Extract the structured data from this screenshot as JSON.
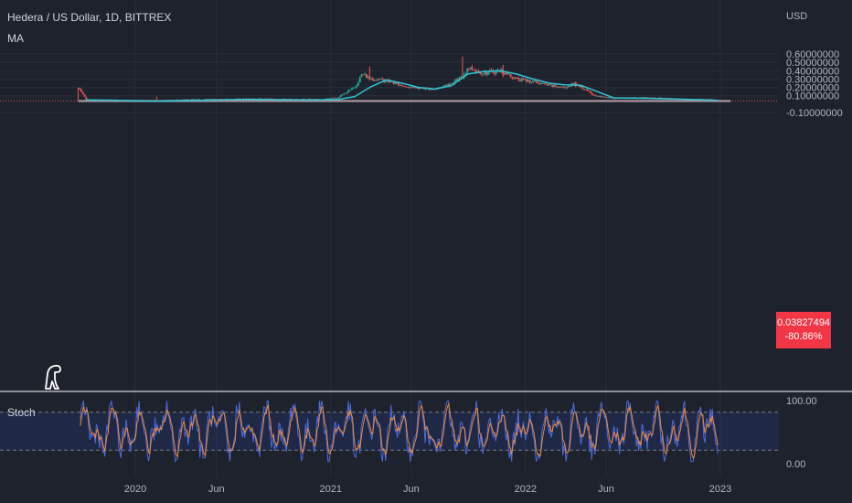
{
  "header": {
    "title": "Hedera / US Dollar, 1D, BITTREX",
    "indicator": "MA",
    "currency": "USD"
  },
  "price_tag": {
    "price": "0.03827494",
    "change": "-80.86%"
  },
  "stoch_panel": {
    "label": "Stoch",
    "upper": "100.00",
    "lower": "0.00"
  },
  "colors": {
    "background": "#1e222d",
    "up": "#26a69a",
    "down": "#ef5350",
    "ma": "#2ec4d6",
    "stoch_k": "#4f6bdc",
    "stoch_d": "#f08a3c",
    "price_tag": "#f23645",
    "support_zone": "#b2b5be"
  },
  "chart_data": [
    {
      "type": "candlestick",
      "title": "Hedera / US Dollar, 1D, BITTREX",
      "y_axis": {
        "label": "USD",
        "ticks": [
          "0.60000000",
          "0.50000000",
          "0.40000000",
          "0.30000000",
          "0.20000000",
          "0.10000000",
          "-0.10000000"
        ],
        "ylim": [
          -0.1,
          0.6
        ]
      },
      "x_axis": {
        "ticks": [
          "2020",
          "Jun",
          "2021",
          "Jun",
          "2022",
          "Jun",
          "2023"
        ]
      },
      "price_trend": {
        "x": [
          "2019-09-16",
          "2019-10-01",
          "2019-12-01",
          "2020-02-15",
          "2020-04-01",
          "2020-06-01",
          "2020-08-01",
          "2020-10-01",
          "2020-12-15",
          "2021-01-15",
          "2021-02-15",
          "2021-03-01",
          "2021-03-15",
          "2021-04-15",
          "2021-05-15",
          "2021-06-15",
          "2021-07-15",
          "2021-08-15",
          "2021-09-05",
          "2021-09-15",
          "2021-10-15",
          "2021-11-15",
          "2021-12-15",
          "2022-01-15",
          "2022-02-15",
          "2022-03-15",
          "2022-04-05",
          "2022-05-10",
          "2022-06-15",
          "2022-08-15",
          "2022-10-15",
          "2022-12-15",
          "2022-12-28"
        ],
        "y": [
          0.19,
          0.055,
          0.042,
          0.045,
          0.055,
          0.058,
          0.065,
          0.06,
          0.058,
          0.082,
          0.2,
          0.36,
          0.31,
          0.28,
          0.22,
          0.19,
          0.18,
          0.25,
          0.32,
          0.44,
          0.37,
          0.4,
          0.3,
          0.27,
          0.22,
          0.2,
          0.25,
          0.1,
          0.07,
          0.08,
          0.065,
          0.055,
          0.0383
        ]
      },
      "moving_average": {
        "name": "MA",
        "x": [
          "2019-10-01",
          "2019-12-01",
          "2020-02-15",
          "2020-04-01",
          "2020-06-01",
          "2020-08-01",
          "2020-10-01",
          "2020-12-15",
          "2021-01-15",
          "2021-02-15",
          "2021-03-15",
          "2021-04-15",
          "2021-05-15",
          "2021-06-15",
          "2021-07-15",
          "2021-08-15",
          "2021-09-15",
          "2021-10-15",
          "2021-11-15",
          "2021-12-15",
          "2022-01-15",
          "2022-02-15",
          "2022-03-15",
          "2022-04-15",
          "2022-05-15",
          "2022-06-15",
          "2022-08-15",
          "2022-10-15",
          "2022-12-28"
        ],
        "y": [
          0.05,
          0.045,
          0.035,
          0.042,
          0.048,
          0.058,
          0.052,
          0.05,
          0.055,
          0.09,
          0.2,
          0.29,
          0.25,
          0.2,
          0.18,
          0.22,
          0.36,
          0.39,
          0.4,
          0.36,
          0.3,
          0.25,
          0.23,
          0.225,
          0.15,
          0.075,
          0.07,
          0.06,
          0.045
        ]
      },
      "support_zone": {
        "y_low": 0.025,
        "y_high": 0.05
      },
      "last_price": 0.03827494,
      "change_percent": -80.86
    },
    {
      "type": "line",
      "title": "Stoch",
      "ylim": [
        0,
        100
      ],
      "y_ticks": [
        "100.00",
        "0.00"
      ],
      "band": [
        20,
        80
      ]
    }
  ]
}
